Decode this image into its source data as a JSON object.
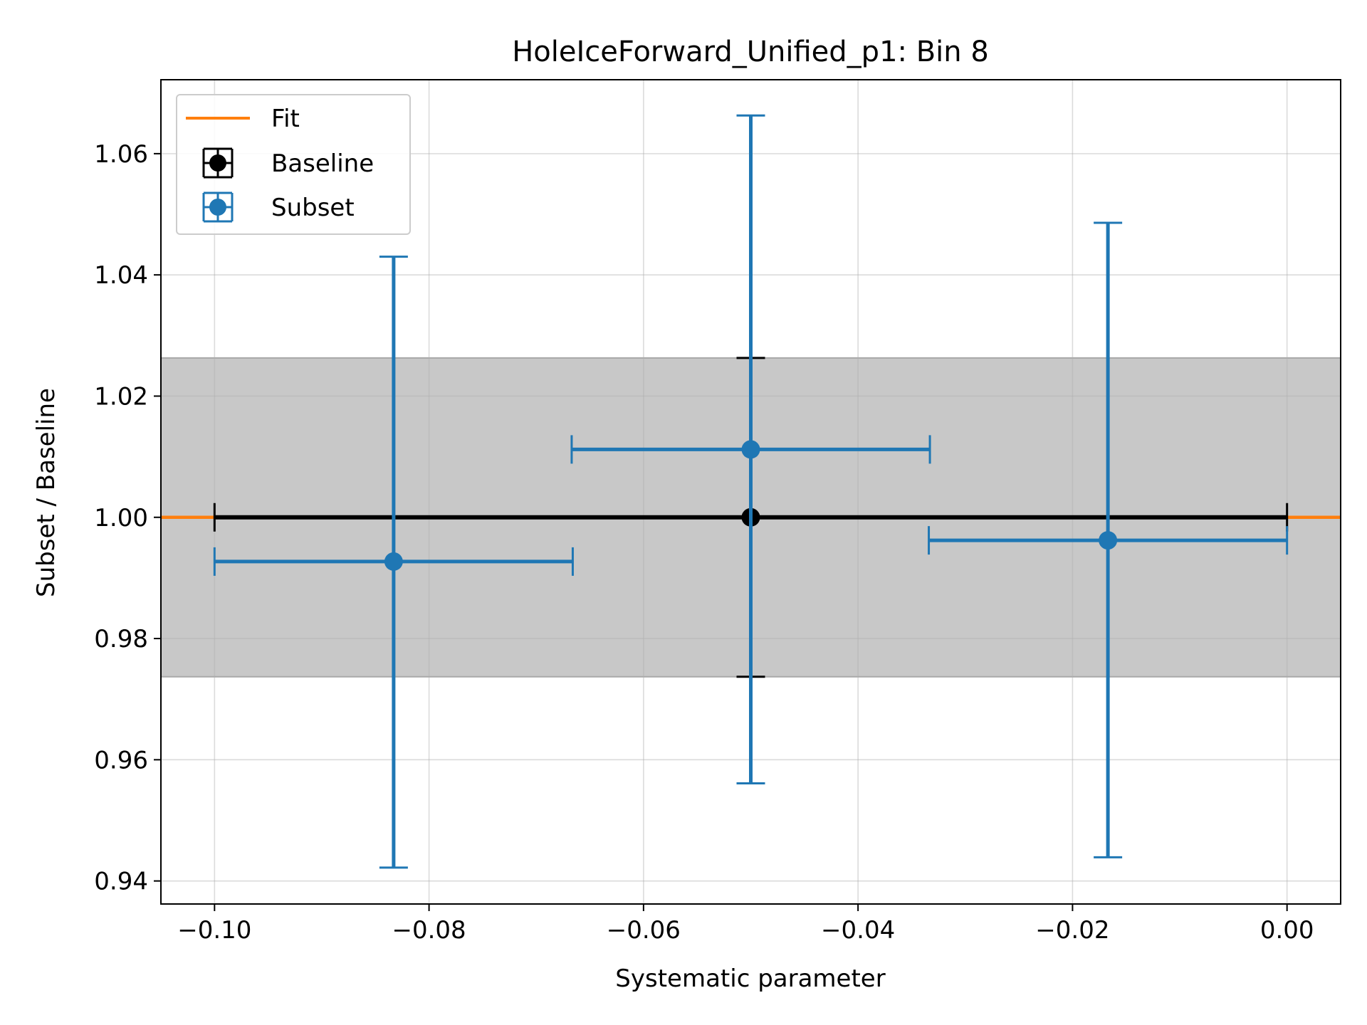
{
  "chart_data": {
    "type": "scatter",
    "title": "HoleIceForward_Unified_p1: Bin 8",
    "xlabel": "Systematic parameter",
    "ylabel": "Subset / Baseline",
    "xlim": [
      -0.105,
      0.005
    ],
    "ylim": [
      0.9362,
      1.0722
    ],
    "xticks": [
      -0.1,
      -0.08,
      -0.06,
      -0.04,
      -0.02,
      0.0
    ],
    "xtick_labels": [
      "−0.10",
      "−0.08",
      "−0.06",
      "−0.04",
      "−0.02",
      "0.00"
    ],
    "yticks": [
      0.94,
      0.96,
      0.98,
      1.0,
      1.02,
      1.04,
      1.06
    ],
    "ytick_labels": [
      "0.94",
      "0.96",
      "0.98",
      "1.00",
      "1.02",
      "1.04",
      "1.06"
    ],
    "grid": true,
    "legend_position": "top-left",
    "band": {
      "ymin": 0.9737,
      "ymax": 1.0263,
      "color": "#c8c8c8"
    },
    "fit": {
      "name": "Fit",
      "color": "#ff7f0e",
      "x": [
        -0.105,
        0.005
      ],
      "y": [
        1.0,
        1.0
      ]
    },
    "baseline": {
      "name": "Baseline",
      "color": "#000000",
      "points": [
        {
          "x": -0.05,
          "y": 1.0,
          "xerr": 0.05,
          "yerr": 0.0263
        }
      ]
    },
    "subset": {
      "name": "Subset",
      "color": "#1f77b4",
      "points": [
        {
          "x": -0.0833,
          "y": 0.9927,
          "xerr": 0.0167,
          "yerr_low": 0.0505,
          "yerr_high": 0.0503
        },
        {
          "x": -0.05,
          "y": 1.0112,
          "xerr": 0.0167,
          "yerr_low": 0.0551,
          "yerr_high": 0.0551
        },
        {
          "x": -0.0167,
          "y": 0.9962,
          "xerr": 0.0167,
          "yerr_low": 0.0523,
          "yerr_high": 0.0524
        }
      ]
    }
  }
}
